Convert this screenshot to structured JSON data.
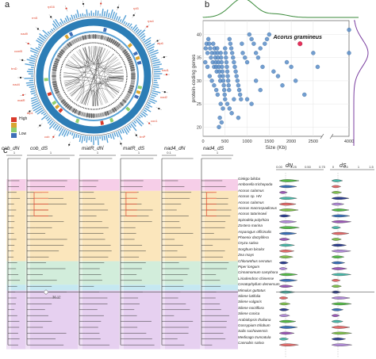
{
  "panel_labels": {
    "a": "a",
    "b": "b",
    "c": "c"
  },
  "panel_a": {
    "legend_high": "High",
    "legend_low": "Low",
    "legend_colors": [
      "#d93a2b",
      "#d9a531",
      "#8fcf6e",
      "#3e6fb8"
    ],
    "gene_labels_right": [
      "rpl5",
      "rps4",
      "atp6",
      "nad1",
      "nad2",
      "cox1",
      "trnP"
    ],
    "gene_labels_left": [
      "rpl16",
      "rrn5",
      "nad9",
      "ccmB",
      "trnD",
      "nad4",
      "matR",
      "atp1",
      "cob"
    ],
    "ring_colors": {
      "outer_bars": "#5aa2d6",
      "thick_ring": "#2c7db6",
      "gray_ring": "#9b9b9b",
      "link_color": "#333333"
    }
  },
  "panel_b": {
    "chart_data": {
      "type": "scatter",
      "xlabel": "Size (Kb)",
      "ylabel": "protein-coding genes",
      "x_ticks": [
        "0",
        "500",
        "1000",
        "1500",
        "2000",
        "2500",
        "4000"
      ],
      "y_ticks": [
        "20",
        "25",
        "30",
        "35",
        "40"
      ],
      "xlim": [
        0,
        4000
      ],
      "ylim": [
        18,
        43
      ],
      "highlight": {
        "label": "Acorus gramineus",
        "x": 2200,
        "y": 38,
        "color": "#e5305a"
      },
      "point_color": "#5b8fc9",
      "marginal_color_top": "#3a8a3a",
      "marginal_color_right": "#7b3fa0",
      "points": [
        [
          60,
          37
        ],
        [
          80,
          38
        ],
        [
          100,
          36
        ],
        [
          120,
          39
        ],
        [
          140,
          38
        ],
        [
          160,
          37
        ],
        [
          180,
          35
        ],
        [
          200,
          36
        ],
        [
          220,
          34
        ],
        [
          230,
          38
        ],
        [
          250,
          33
        ],
        [
          260,
          37
        ],
        [
          270,
          36
        ],
        [
          280,
          35
        ],
        [
          290,
          34
        ],
        [
          300,
          33
        ],
        [
          310,
          32
        ],
        [
          320,
          37
        ],
        [
          330,
          36
        ],
        [
          340,
          35
        ],
        [
          350,
          34
        ],
        [
          360,
          33
        ],
        [
          370,
          32
        ],
        [
          380,
          31
        ],
        [
          390,
          30
        ],
        [
          400,
          36
        ],
        [
          410,
          35
        ],
        [
          420,
          34
        ],
        [
          430,
          33
        ],
        [
          440,
          32
        ],
        [
          450,
          31
        ],
        [
          460,
          30
        ],
        [
          470,
          29
        ],
        [
          480,
          28
        ],
        [
          490,
          27
        ],
        [
          500,
          37
        ],
        [
          510,
          36
        ],
        [
          520,
          35
        ],
        [
          530,
          34
        ],
        [
          540,
          33
        ],
        [
          550,
          32
        ],
        [
          560,
          31
        ],
        [
          570,
          30
        ],
        [
          580,
          29
        ],
        [
          590,
          28
        ],
        [
          600,
          39
        ],
        [
          620,
          38
        ],
        [
          640,
          37
        ],
        [
          660,
          36
        ],
        [
          680,
          35
        ],
        [
          700,
          34
        ],
        [
          720,
          33
        ],
        [
          740,
          32
        ],
        [
          760,
          31
        ],
        [
          780,
          30
        ],
        [
          800,
          29
        ],
        [
          820,
          28
        ],
        [
          840,
          27
        ],
        [
          860,
          26
        ],
        [
          880,
          38
        ],
        [
          900,
          36
        ],
        [
          950,
          35
        ],
        [
          1000,
          34
        ],
        [
          1050,
          40
        ],
        [
          1100,
          39
        ],
        [
          1150,
          38
        ],
        [
          1200,
          36
        ],
        [
          1250,
          35
        ],
        [
          1300,
          37
        ],
        [
          1350,
          33
        ],
        [
          1400,
          38
        ],
        [
          1450,
          39
        ],
        [
          1500,
          40
        ],
        [
          1600,
          32
        ],
        [
          1700,
          31
        ],
        [
          1800,
          29
        ],
        [
          1900,
          34
        ],
        [
          2000,
          33
        ],
        [
          2100,
          30
        ],
        [
          2300,
          27
        ],
        [
          2500,
          36
        ],
        [
          2600,
          33
        ],
        [
          400,
          25
        ],
        [
          450,
          24
        ],
        [
          500,
          26
        ],
        [
          550,
          25
        ],
        [
          600,
          24
        ],
        [
          650,
          23
        ],
        [
          700,
          26
        ],
        [
          380,
          22
        ],
        [
          420,
          21
        ],
        [
          360,
          20
        ],
        [
          330,
          27
        ],
        [
          300,
          28
        ],
        [
          250,
          29
        ],
        [
          200,
          30
        ],
        [
          150,
          31
        ],
        [
          100,
          33
        ],
        [
          50,
          34
        ],
        [
          1000,
          26
        ],
        [
          1100,
          25
        ],
        [
          1200,
          30
        ],
        [
          800,
          22
        ],
        [
          1300,
          28
        ],
        [
          4000,
          36
        ],
        [
          4000,
          41
        ]
      ]
    }
  },
  "panel_c": {
    "headers": [
      {
        "id": "cob_dn",
        "text": "cob_dN"
      },
      {
        "id": "cob_ds",
        "text": "cob_dS"
      },
      {
        "id": "matr_dn",
        "text": "matR_dN"
      },
      {
        "id": "matr_ds",
        "text": "matR_dS"
      },
      {
        "id": "nad4_dn",
        "text": "nad4_dN"
      },
      {
        "id": "nad4_ds",
        "text": "nad4_dS"
      }
    ],
    "dn_title": "dN",
    "ds_title": "dS",
    "dn_ticks": [
      "0.00",
      "0.25",
      "0.50",
      "0.75"
    ],
    "ds_ticks": [
      "0",
      "0.5",
      "1",
      "1.5"
    ],
    "scale_labels": [
      "1",
      "1",
      "1",
      "1",
      "0.1",
      "1"
    ],
    "bootstrap_label": "36.12",
    "species": [
      "Ginkgo biloba",
      "Amborella trichopoda",
      "Acorus calamus",
      "Acorus sp. HN",
      "Acorus calamus",
      "Acorus macrospadiceus",
      "Acorus tatarinowii",
      "Spirodela polyrhiza",
      "Zostera marina",
      "Asparagus officinalis",
      "Phoenix dactylifera",
      "Oryza sativa",
      "Sorghum bicolor",
      "Zea mays",
      "Chloranthus serratus",
      "Piper longum",
      "Cinnamomum camphora",
      "Liriodendron chinense",
      "Ceratophyllum demersum",
      "Mimulus guttatus",
      "Silene latifolia",
      "Silene vulgaris",
      "Silene noctiflora",
      "Silene conica",
      "Arabidopsis thaliana",
      "Gossypium trilobum",
      "Salix suchowensis",
      "Medicago truncatula",
      "Cannabis sativa"
    ],
    "band_colors": {
      "pink": "#f5c9e6",
      "orange": "#fbe3b5",
      "green": "#cdebd7",
      "cyan": "#bfe6ef",
      "purple": "#e3cbee"
    },
    "violin_colors": [
      "#54b948",
      "#3a6fb5",
      "#9b59b6",
      "#4ab7a8",
      "#e26a6a",
      "#7fbf4d",
      "#2c3e8f",
      "#b08ad6"
    ]
  }
}
